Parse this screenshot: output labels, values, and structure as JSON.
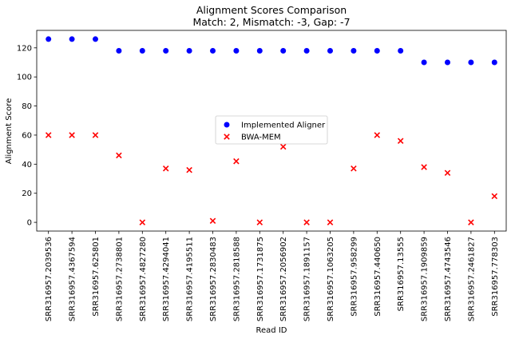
{
  "chart_data": {
    "type": "scatter",
    "title": "Alignment Scores Comparison",
    "subtitle": "Match: 2, Mismatch: -3, Gap: -7",
    "xlabel": "Read ID",
    "ylabel": "Alignment Score",
    "ylim": [
      -6,
      132
    ],
    "yticks": [
      0,
      20,
      40,
      60,
      80,
      100,
      120
    ],
    "grid": false,
    "legend_position": "center",
    "categories": [
      "SRR316957.2039536",
      "SRR316957.4367594",
      "SRR316957.625801",
      "SRR316957.2738801",
      "SRR316957.4827280",
      "SRR316957.4294041",
      "SRR316957.4195511",
      "SRR316957.2830483",
      "SRR316957.2818588",
      "SRR316957.1731875",
      "SRR316957.2056902",
      "SRR316957.1891157",
      "SRR316957.1063205",
      "SRR316957.958299",
      "SRR316957.440650",
      "SRR316957.13555",
      "SRR316957.1909859",
      "SRR316957.4743546",
      "SRR316957.2461827",
      "SRR316957.778303"
    ],
    "series": [
      {
        "name": "Implemented Aligner",
        "marker": "circle",
        "color": "#0000ff",
        "values": [
          126,
          126,
          126,
          118,
          118,
          118,
          118,
          118,
          118,
          118,
          118,
          118,
          118,
          118,
          118,
          118,
          110,
          110,
          110,
          110
        ]
      },
      {
        "name": "BWA-MEM",
        "marker": "x",
        "color": "#ff0000",
        "values": [
          60,
          60,
          60,
          46,
          0,
          37,
          36,
          1,
          42,
          0,
          52,
          0,
          0,
          37,
          60,
          56,
          38,
          34,
          0,
          18
        ]
      }
    ]
  }
}
